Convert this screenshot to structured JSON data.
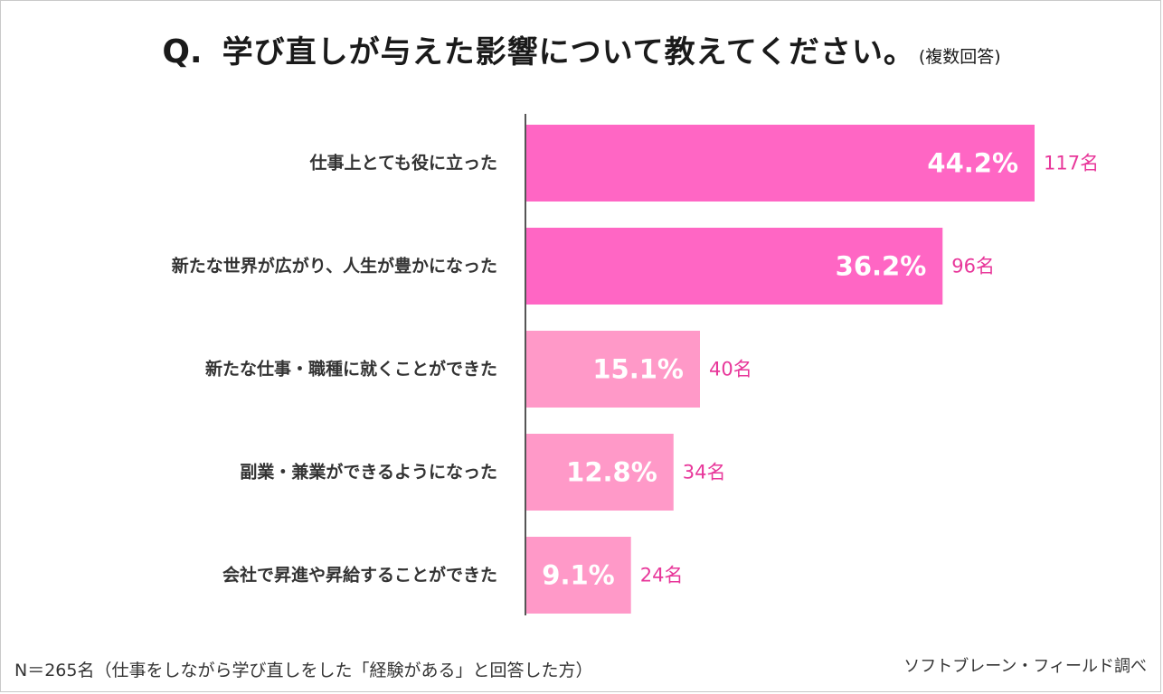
{
  "header": {
    "q_mark": "Q.",
    "title": "学び直しが与えた影響について教えてください。",
    "subtitle": "(複数回答)"
  },
  "chart_data": {
    "type": "bar",
    "orientation": "horizontal",
    "categories": [
      "仕事上とても役に立った",
      "新たな世界が広がり、人生が豊かになった",
      "新たな仕事・職種に就くことができた",
      "副業・兼業ができるようになった",
      "会社で昇進や昇給することができた"
    ],
    "values": [
      44.2,
      36.2,
      15.1,
      12.8,
      9.1
    ],
    "value_labels": [
      "44.2%",
      "36.2%",
      "15.1%",
      "12.8%",
      "9.1%"
    ],
    "counts": [
      "117名",
      "96名",
      "40名",
      "34名",
      "24名"
    ],
    "bar_colors": [
      "#ff66c4",
      "#ff66c4",
      "#ff99c8",
      "#ff99c8",
      "#ff99c8"
    ],
    "xlim": [
      0,
      50
    ],
    "grid": false,
    "legend": "none"
  },
  "colors": {
    "axis": "#555555",
    "count_text": "#e8379a"
  },
  "footer": {
    "note": "N＝265名（仕事をしながら学び直しをした「経験がある」と回答した方）",
    "source": "ソフトブレーン・フィールド調べ"
  }
}
